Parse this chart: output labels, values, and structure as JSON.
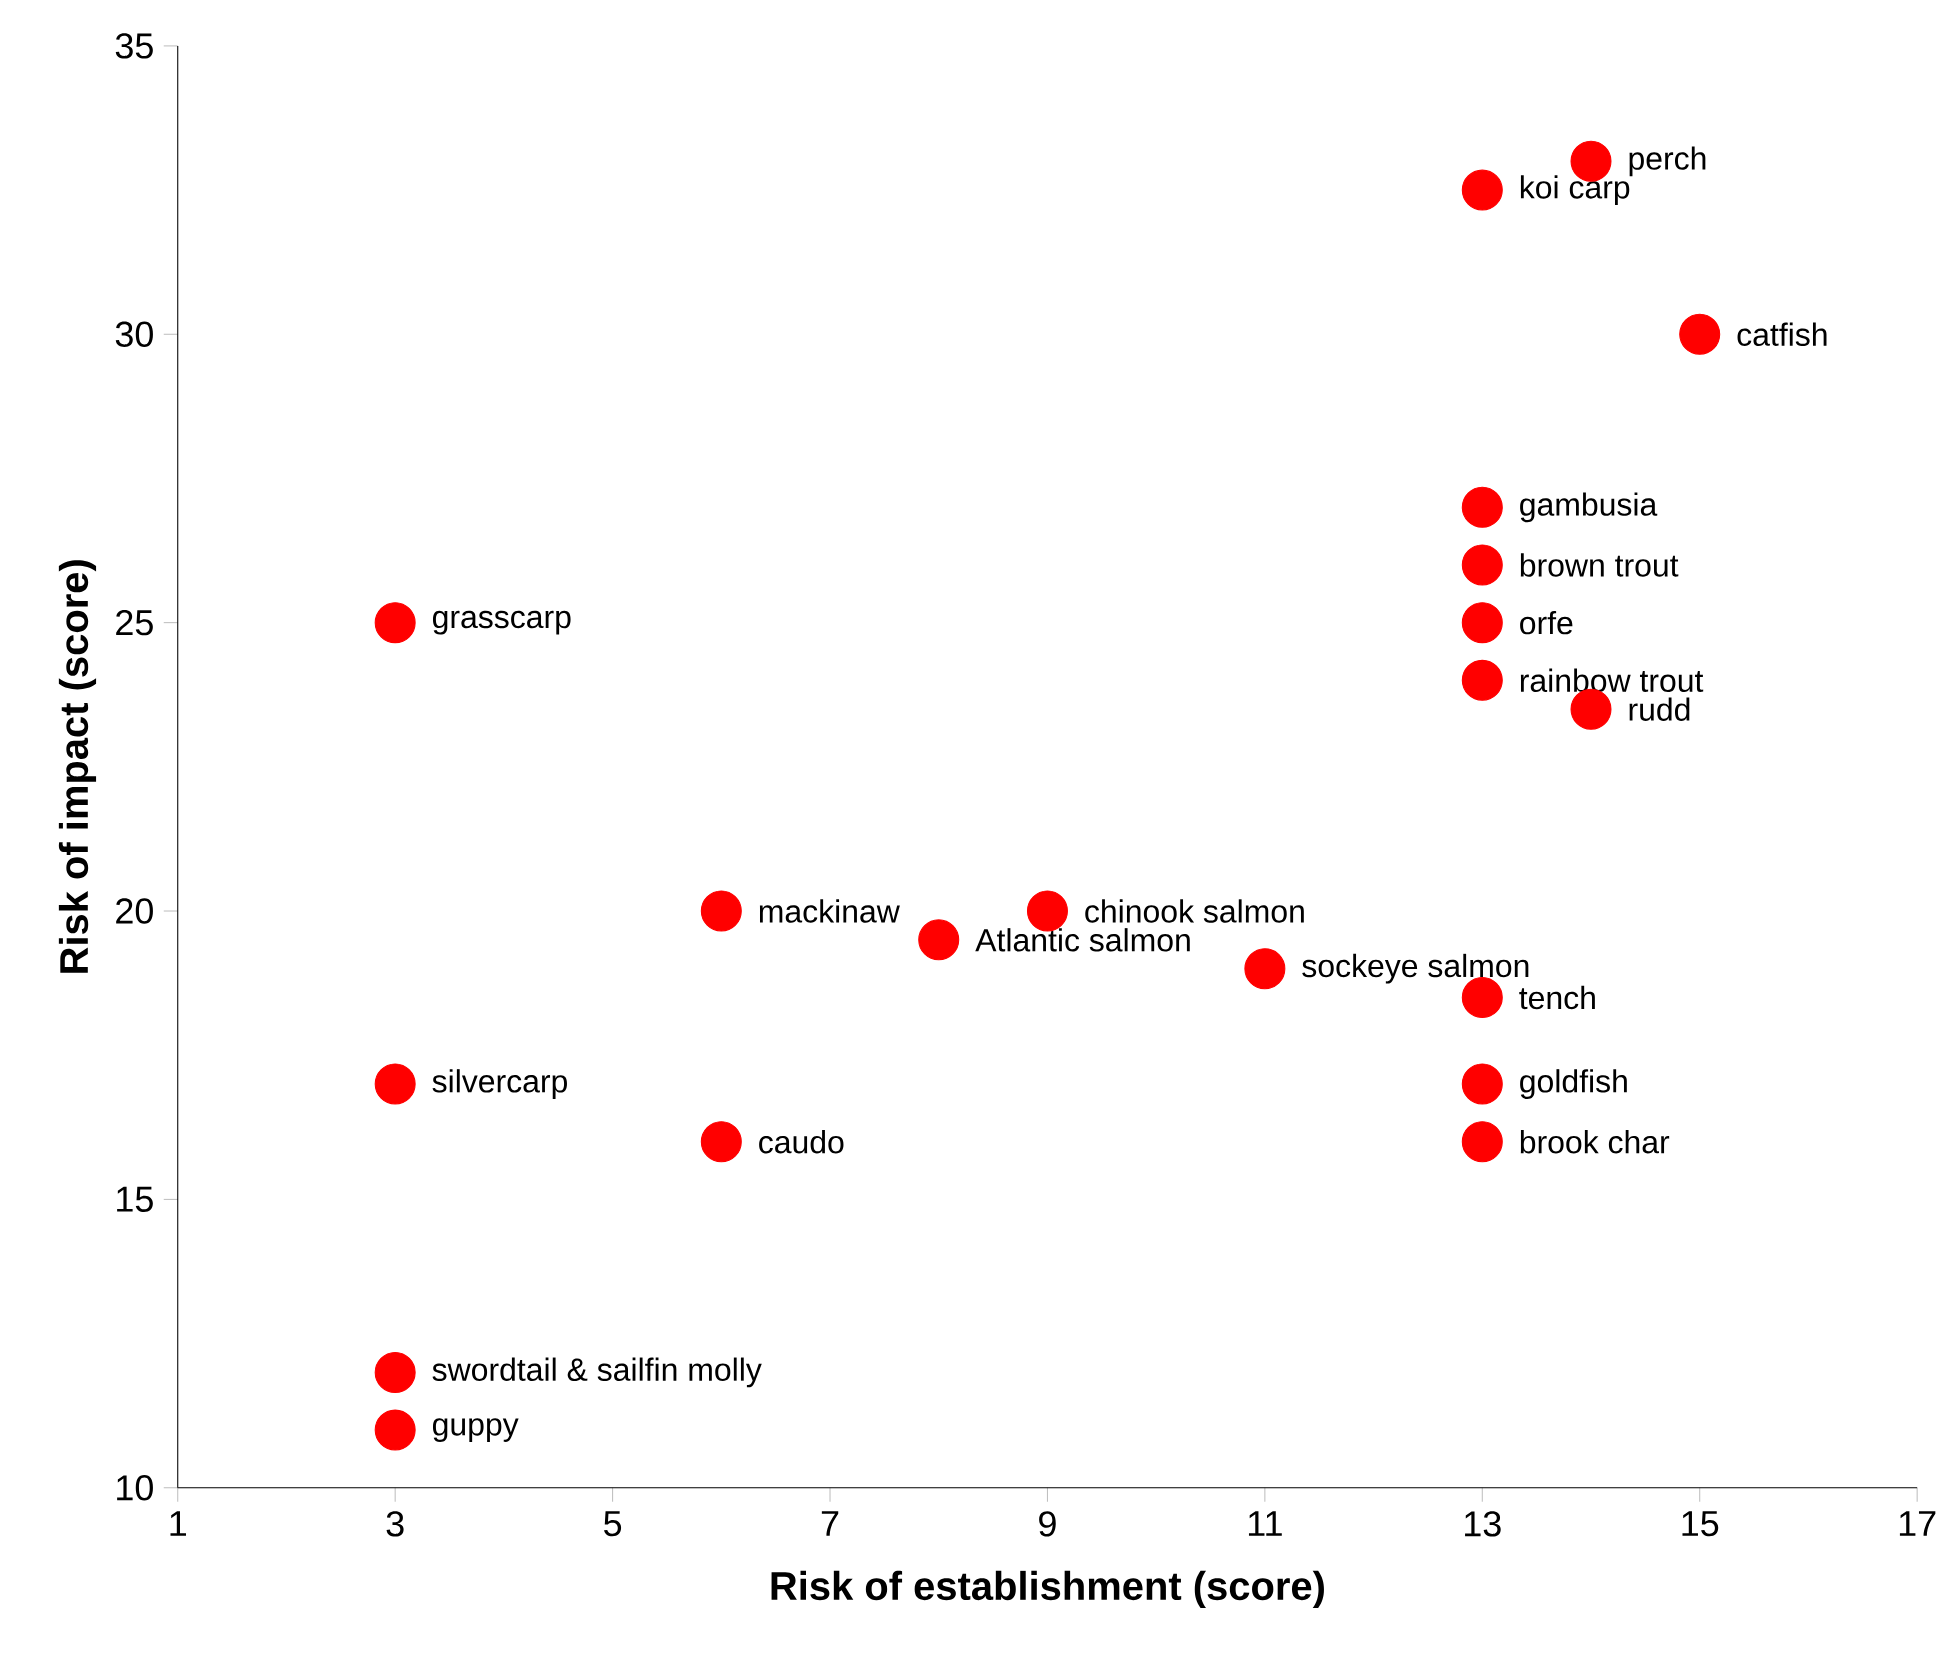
{
  "chart_data": {
    "type": "scatter",
    "xlabel": "Risk of establishment (score)",
    "ylabel": "Risk of impact (score)",
    "x": [
      14,
      13,
      15,
      13,
      13,
      13,
      13,
      14,
      3,
      6,
      9,
      8,
      11,
      13,
      3,
      13,
      6,
      13,
      3,
      3
    ],
    "series": [
      {
        "color": "#ff0000",
        "values": [
          33,
          32.5,
          30,
          27,
          26,
          25,
          24,
          23.5,
          25,
          20,
          20,
          19.5,
          19,
          18.5,
          17,
          17,
          16,
          16,
          12,
          11
        ]
      }
    ],
    "marker": "circle",
    "xlim": [
      1,
      17
    ],
    "xticks": [
      1,
      3,
      5,
      7,
      9,
      11,
      13,
      15,
      17
    ],
    "ylim": [
      10,
      35
    ],
    "yticks": [
      10,
      15,
      20,
      25,
      30,
      35
    ],
    "annotations": [
      {
        "text": "perch",
        "x": 14,
        "y": 33
      },
      {
        "text": "koi carp",
        "x": 13,
        "y": 32.5
      },
      {
        "text": "catfish",
        "x": 15,
        "y": 30
      },
      {
        "text": "gambusia",
        "x": 13,
        "y": 27
      },
      {
        "text": "brown trout",
        "x": 13,
        "y": 26
      },
      {
        "text": "orfe",
        "x": 13,
        "y": 25
      },
      {
        "text": "rainbow trout",
        "x": 13,
        "y": 24
      },
      {
        "text": "rudd",
        "x": 14,
        "y": 23.5
      },
      {
        "text": "grasscarp",
        "x": 3,
        "y": 25
      },
      {
        "text": "mackinaw",
        "x": 6,
        "y": 20
      },
      {
        "text": "chinook salmon",
        "x": 9,
        "y": 20
      },
      {
        "text": "Atlantic salmon",
        "x": 8,
        "y": 19.5
      },
      {
        "text": "sockeye salmon",
        "x": 11,
        "y": 19
      },
      {
        "text": "tench",
        "x": 13,
        "y": 18.5
      },
      {
        "text": "silvercarp",
        "x": 3,
        "y": 17
      },
      {
        "text": "goldfish",
        "x": 13,
        "y": 17
      },
      {
        "text": "caudo",
        "x": 6,
        "y": 16
      },
      {
        "text": "brook char",
        "x": 13,
        "y": 16
      },
      {
        "text": "swordtail & sailfin molly",
        "x": 3,
        "y": 12
      },
      {
        "text": "guppy",
        "x": 3,
        "y": 11
      }
    ]
  }
}
